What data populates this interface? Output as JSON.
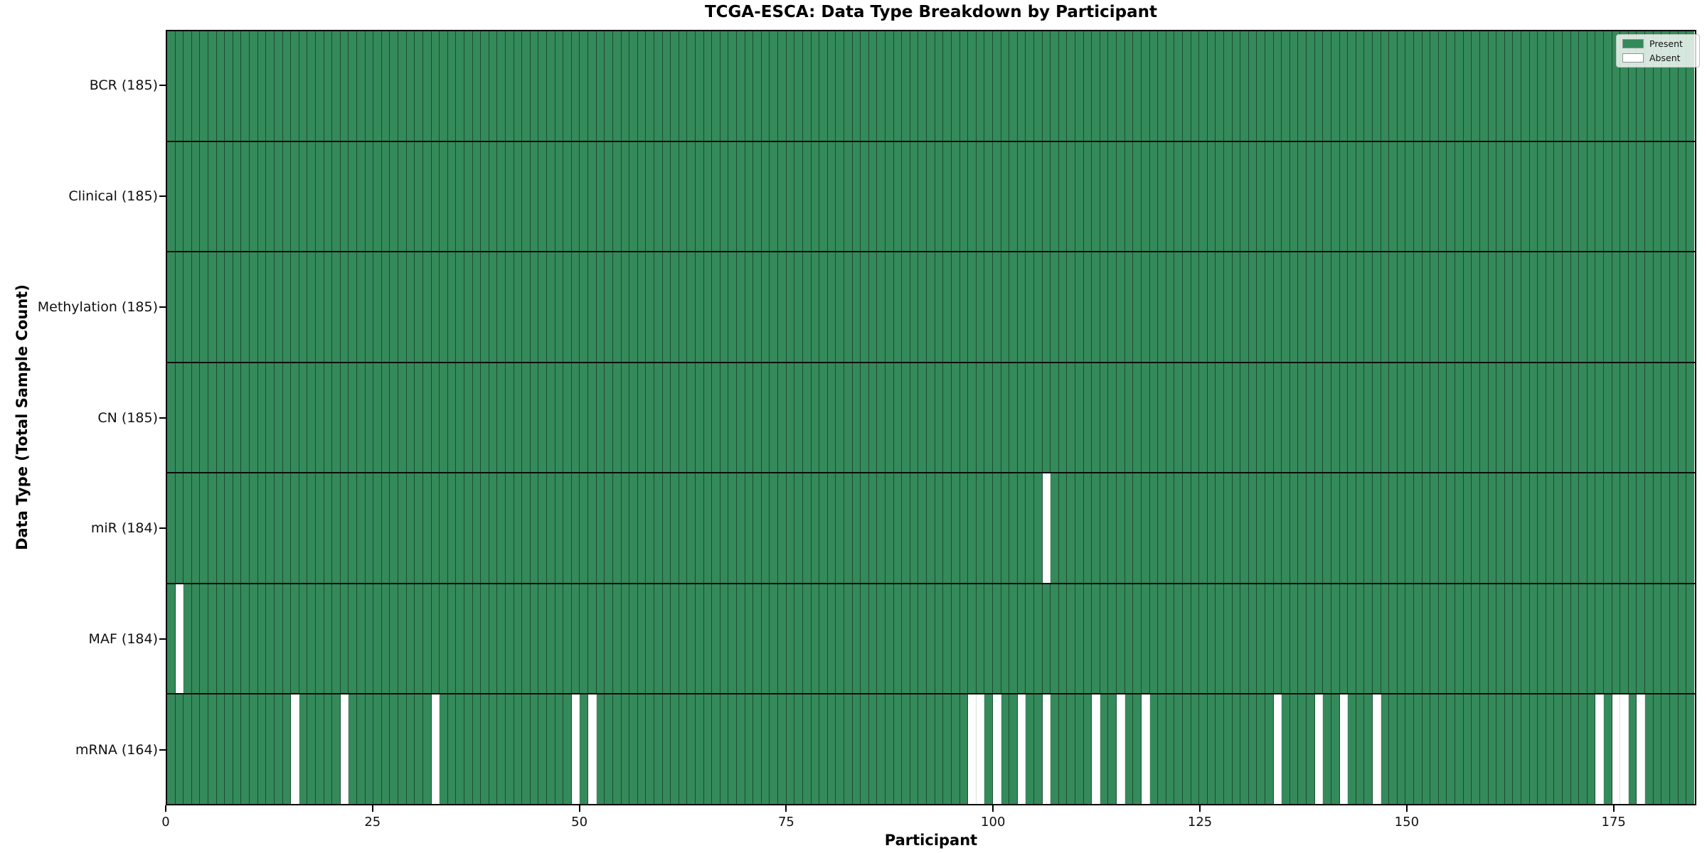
{
  "title": "TCGA-ESCA: Data Type Breakdown by Participant",
  "xlabel": "Participant",
  "ylabel": "Data Type (Total Sample Count)",
  "legend": {
    "present_label": "Present",
    "absent_label": "Absent"
  },
  "chart_data": {
    "type": "heatmap",
    "title": "TCGA-ESCA: Data Type Breakdown by Participant",
    "xlabel": "Participant",
    "ylabel": "Data Type (Total Sample Count)",
    "legend_entries": [
      "Present",
      "Absent"
    ],
    "legend_position": "upper right",
    "grid": "cell borders on",
    "n_participants": 185,
    "x_ticks": [
      0,
      25,
      50,
      75,
      100,
      125,
      150,
      175
    ],
    "xlim": [
      0,
      185
    ],
    "colors": {
      "present": "#348a5a",
      "absent": "#ffffff",
      "cell_border": "rgba(0,0,0,0.45)",
      "row_separator": "#0d0d0d"
    },
    "rows": [
      {
        "label": "BCR (185)",
        "data_type": "BCR",
        "total_sample_count": 185,
        "absent_participant_indices": []
      },
      {
        "label": "Clinical (185)",
        "data_type": "Clinical",
        "total_sample_count": 185,
        "absent_participant_indices": []
      },
      {
        "label": "Methylation (185)",
        "data_type": "Methylation",
        "total_sample_count": 185,
        "absent_participant_indices": []
      },
      {
        "label": "CN (185)",
        "data_type": "CN",
        "total_sample_count": 185,
        "absent_participant_indices": []
      },
      {
        "label": "miR (184)",
        "data_type": "miR",
        "total_sample_count": 184,
        "absent_participant_indices": [
          106
        ]
      },
      {
        "label": "MAF (184)",
        "data_type": "MAF",
        "total_sample_count": 184,
        "absent_participant_indices": [
          1
        ]
      },
      {
        "label": "mRNA (164)",
        "data_type": "mRNA",
        "total_sample_count": 164,
        "absent_participant_indices": [
          15,
          21,
          32,
          49,
          51,
          97,
          98,
          100,
          103,
          106,
          112,
          115,
          118,
          134,
          139,
          142,
          146,
          173,
          175,
          176,
          178
        ]
      }
    ]
  }
}
